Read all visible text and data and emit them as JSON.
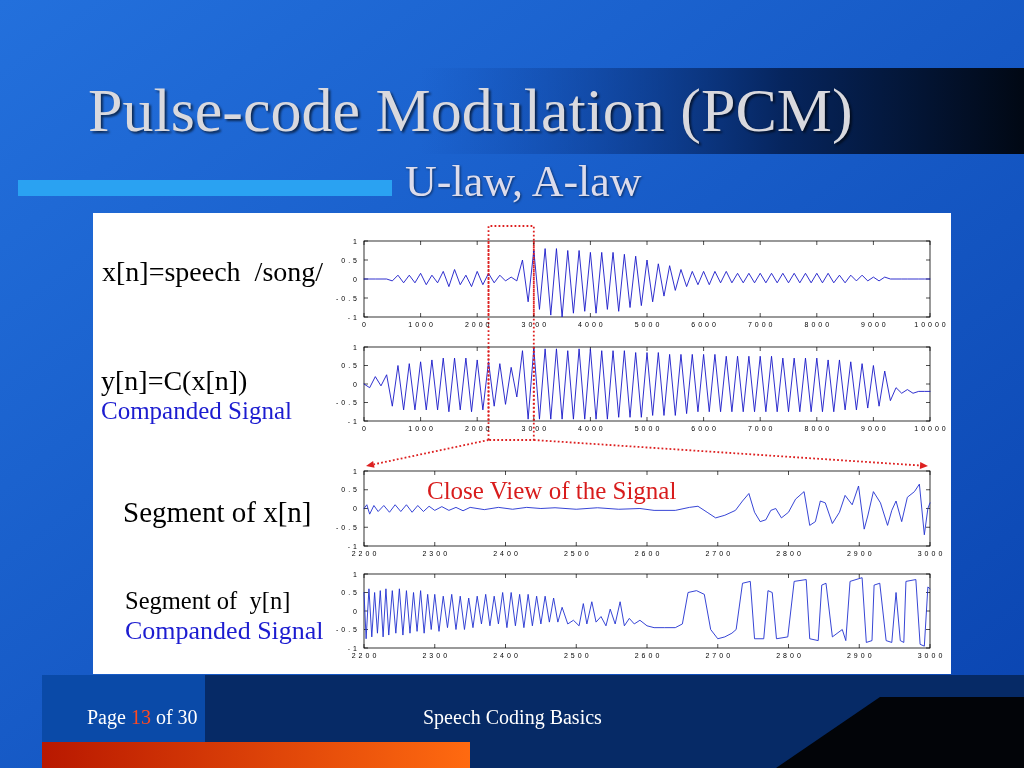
{
  "chart_data": [
    {
      "type": "line",
      "title": "Pulse-code Modulation (PCM)",
      "subtitle": "U-law, A-law",
      "ylabel": "x[n]=speech  /song/",
      "x": [
        0,
        100,
        200,
        300,
        400,
        500,
        600,
        700,
        800,
        900,
        1000,
        1100,
        1200,
        1300,
        1400,
        1500,
        1600,
        1700,
        1800,
        1900,
        2000,
        2100,
        2200,
        2300,
        2400,
        2500,
        2600,
        2700,
        2800,
        2900,
        3000,
        3100,
        3200,
        3300,
        3400,
        3500,
        3600,
        3700,
        3800,
        3900,
        4000,
        4100,
        4200,
        4300,
        4400,
        4500,
        4600,
        4700,
        4800,
        4900,
        5000,
        5100,
        5200,
        5300,
        5400,
        5500,
        5600,
        5700,
        5800,
        5900,
        6000,
        6100,
        6200,
        6300,
        6400,
        6500,
        6600,
        6700,
        6800,
        6900,
        7000,
        7100,
        7200,
        7300,
        7400,
        7500,
        7600,
        7700,
        7800,
        7900,
        8000,
        8100,
        8200,
        8300,
        8400,
        8500,
        8600,
        8700,
        8800,
        8900,
        9000,
        9100,
        9200,
        9300,
        9400,
        9500,
        9600,
        9700,
        9800,
        9900,
        10000
      ],
      "series": [
        {
          "color": "#1818c8",
          "values": [
            0,
            0,
            0,
            0,
            0,
            -0.05,
            0.1,
            -0.1,
            0.1,
            -0.1,
            0.15,
            -0.15,
            0.1,
            -0.1,
            0.2,
            -0.2,
            0.25,
            -0.15,
            0.1,
            -0.2,
            0.2,
            -0.15,
            0.15,
            -0.1,
            0.1,
            -0.05,
            0.05,
            -0.05,
            0.5,
            -0.6,
            0.75,
            -0.8,
            0.8,
            -0.95,
            0.8,
            -1,
            0.75,
            -0.9,
            0.75,
            -0.85,
            0.7,
            -0.9,
            0.7,
            -0.8,
            0.7,
            -0.85,
            0.65,
            -0.75,
            0.6,
            -0.7,
            0.5,
            -0.6,
            0.4,
            -0.45,
            0.35,
            -0.3,
            0.25,
            -0.2,
            0.2,
            -0.15,
            0.2,
            -0.15,
            0.2,
            -0.1,
            0.2,
            -0.1,
            0.15,
            -0.1,
            0.15,
            -0.1,
            0.15,
            -0.1,
            0.15,
            -0.1,
            0.15,
            -0.1,
            0.15,
            -0.1,
            0.15,
            -0.1,
            0.15,
            -0.1,
            0.15,
            -0.1,
            0.1,
            -0.1,
            0.1,
            -0.05,
            0.1,
            -0.05,
            0.05,
            -0.05,
            0.05,
            0,
            0,
            0,
            0,
            0,
            0,
            0,
            0
          ]
        }
      ],
      "xlim": [
        0,
        10000
      ],
      "ylim": [
        -1,
        1
      ],
      "xticks": [
        0,
        1000,
        2000,
        3000,
        4000,
        5000,
        6000,
        7000,
        8000,
        9000,
        10000
      ],
      "yticks": [
        -1,
        -0.5,
        0,
        0.5,
        1
      ],
      "ref_lines": [
        {
          "axis": "x",
          "value": 2200,
          "color": "#dd2020",
          "line_style": "dotted"
        },
        {
          "axis": "x",
          "value": 3000,
          "color": "#dd2020",
          "line_style": "dotted"
        }
      ]
    },
    {
      "type": "line",
      "ylabel": "y[n]=C(x[n])",
      "annotations": [
        "Companded Signal"
      ],
      "x": [
        0,
        100,
        200,
        300,
        400,
        500,
        600,
        700,
        800,
        900,
        1000,
        1100,
        1200,
        1300,
        1400,
        1500,
        1600,
        1700,
        1800,
        1900,
        2000,
        2100,
        2200,
        2300,
        2400,
        2500,
        2600,
        2700,
        2800,
        2900,
        3000,
        3100,
        3200,
        3300,
        3400,
        3500,
        3600,
        3700,
        3800,
        3900,
        4000,
        4100,
        4200,
        4300,
        4400,
        4500,
        4600,
        4700,
        4800,
        4900,
        5000,
        5100,
        5200,
        5300,
        5400,
        5500,
        5600,
        5700,
        5800,
        5900,
        6000,
        6100,
        6200,
        6300,
        6400,
        6500,
        6600,
        6700,
        6800,
        6900,
        7000,
        7100,
        7200,
        7300,
        7400,
        7500,
        7600,
        7700,
        7800,
        7900,
        8000,
        8100,
        8200,
        8300,
        8400,
        8500,
        8600,
        8700,
        8800,
        8900,
        9000,
        9100,
        9200,
        9300,
        9400,
        9500,
        9600,
        9700,
        9800,
        9900,
        10000
      ],
      "series": [
        {
          "color": "#1818c8",
          "values": [
            0,
            -0.1,
            0.2,
            -0.05,
            0.25,
            -0.6,
            0.5,
            -0.7,
            0.55,
            -0.7,
            0.6,
            -0.7,
            0.65,
            -0.7,
            0.7,
            -0.75,
            0.7,
            -0.7,
            0.7,
            -0.75,
            0.65,
            -0.7,
            0.6,
            -0.6,
            0.55,
            -0.55,
            0.45,
            -0.35,
            0.9,
            -0.95,
            0.95,
            -0.95,
            0.95,
            -0.95,
            0.95,
            -0.95,
            0.9,
            -0.95,
            0.95,
            -0.95,
            0.95,
            -0.95,
            0.9,
            -0.95,
            0.9,
            -0.9,
            0.9,
            -0.9,
            0.85,
            -0.9,
            0.85,
            -0.85,
            0.85,
            -0.85,
            0.8,
            -0.85,
            0.8,
            -0.8,
            0.8,
            -0.75,
            0.8,
            -0.75,
            0.8,
            -0.75,
            0.75,
            -0.75,
            0.75,
            -0.75,
            0.75,
            -0.75,
            0.75,
            -0.75,
            0.75,
            -0.75,
            0.7,
            -0.75,
            0.7,
            -0.75,
            0.7,
            -0.75,
            0.7,
            -0.75,
            0.65,
            -0.75,
            0.65,
            -0.7,
            0.6,
            -0.7,
            0.55,
            -0.65,
            0.5,
            -0.6,
            0.35,
            -0.45,
            -0.1,
            -0.25,
            -0.15,
            -0.25,
            -0.2,
            -0.2,
            -0.2
          ]
        }
      ],
      "xlim": [
        0,
        10000
      ],
      "ylim": [
        -1,
        1
      ],
      "xticks": [
        0,
        1000,
        2000,
        3000,
        4000,
        5000,
        6000,
        7000,
        8000,
        9000,
        10000
      ],
      "yticks": [
        -1,
        -0.5,
        0,
        0.5,
        1
      ],
      "ref_lines": [
        {
          "axis": "x",
          "value": 2200,
          "color": "#dd2020",
          "line_style": "dotted"
        },
        {
          "axis": "x",
          "value": 3000,
          "color": "#dd2020",
          "line_style": "dotted"
        }
      ]
    },
    {
      "type": "line",
      "ylabel": "Segment of x[n]",
      "annotations": [
        "Close View of the Signal"
      ],
      "x": [
        2200,
        2204,
        2208,
        2214,
        2220,
        2228,
        2236,
        2244,
        2252,
        2260,
        2268,
        2276,
        2284,
        2292,
        2300,
        2310,
        2320,
        2330,
        2340,
        2350,
        2370,
        2390,
        2410,
        2430,
        2450,
        2470,
        2500,
        2530,
        2560,
        2590,
        2610,
        2640,
        2660,
        2672,
        2685,
        2697,
        2710,
        2725,
        2735,
        2744,
        2752,
        2760,
        2768,
        2775,
        2782,
        2790,
        2800,
        2810,
        2822,
        2830,
        2838,
        2845,
        2852,
        2862,
        2872,
        2880,
        2890,
        2899,
        2907,
        2912,
        2920,
        2930,
        2940,
        2946,
        2952,
        2960,
        2968,
        2978,
        2985,
        2992,
        2997,
        3000
      ],
      "series": [
        {
          "color": "#2030d0",
          "values": [
            0,
            0.1,
            -0.15,
            0.08,
            -0.08,
            0.08,
            -0.1,
            0.1,
            -0.08,
            0.1,
            -0.1,
            0.08,
            -0.08,
            0.06,
            -0.05,
            0.05,
            -0.05,
            0.03,
            -0.06,
            0.03,
            -0.03,
            0.03,
            -0.02,
            0.03,
            0,
            0.02,
            -0.02,
            0.02,
            -0.02,
            0,
            -0.05,
            -0.05,
            0.03,
            0.06,
            -0.1,
            -0.25,
            -0.18,
            -0.05,
            0.2,
            0.4,
            -0.1,
            -0.35,
            -0.3,
            -0.05,
            0,
            -0.25,
            -0.1,
            0.25,
            0.45,
            -0.45,
            -0.35,
            0.2,
            0.15,
            -0.4,
            -0.1,
            0.35,
            0.1,
            0.6,
            -0.55,
            -0.2,
            0.45,
            0.15,
            -0.45,
            -0.05,
            0.2,
            -0.35,
            0.3,
            0.45,
            0.65,
            -0.7,
            0,
            0.15
          ]
        }
      ],
      "xlim": [
        2200,
        3000
      ],
      "ylim": [
        -1,
        1
      ],
      "xticks": [
        2200,
        2300,
        2400,
        2500,
        2600,
        2700,
        2800,
        2900,
        3000
      ],
      "yticks": [
        -1,
        -0.5,
        0,
        0.5,
        1
      ]
    },
    {
      "type": "line",
      "ylabel": "Segment of  y[n]",
      "annotations": [
        "Companded Signal",
        "Page 13 of 30",
        "Speech Coding Basics"
      ],
      "x": [
        2200,
        2203,
        2207,
        2211,
        2215,
        2219,
        2223,
        2227,
        2231,
        2235,
        2240,
        2245,
        2250,
        2255,
        2260,
        2265,
        2270,
        2275,
        2280,
        2285,
        2290,
        2295,
        2300,
        2306,
        2312,
        2318,
        2324,
        2330,
        2336,
        2342,
        2348,
        2354,
        2360,
        2366,
        2372,
        2378,
        2384,
        2390,
        2396,
        2402,
        2408,
        2414,
        2420,
        2426,
        2432,
        2438,
        2444,
        2450,
        2456,
        2462,
        2468,
        2474,
        2480,
        2488,
        2496,
        2504,
        2510,
        2515,
        2522,
        2528,
        2535,
        2542,
        2548,
        2555,
        2562,
        2568,
        2575,
        2582,
        2590,
        2600,
        2610,
        2625,
        2640,
        2650,
        2658,
        2670,
        2681,
        2690,
        2700,
        2710,
        2720,
        2726,
        2735,
        2746,
        2752,
        2765,
        2771,
        2777,
        2783,
        2799,
        2808,
        2825,
        2830,
        2842,
        2847,
        2853,
        2862,
        2876,
        2881,
        2887,
        2904,
        2910,
        2918,
        2921,
        2929,
        2938,
        2946,
        2952,
        2958,
        2963,
        2966,
        2980,
        2986,
        2992,
        2997,
        3000
      ],
      "series": [
        {
          "color": "#2030d0",
          "values": [
            0.5,
            -0.75,
            0.6,
            -0.7,
            0.5,
            -0.6,
            0.55,
            -0.7,
            0.6,
            -0.65,
            0.55,
            -0.6,
            0.6,
            -0.65,
            0.55,
            -0.6,
            0.5,
            -0.55,
            0.55,
            -0.6,
            0.45,
            -0.5,
            0.45,
            -0.55,
            0.4,
            -0.45,
            0.45,
            -0.5,
            0.4,
            -0.5,
            0.35,
            -0.45,
            0.4,
            -0.35,
            0.45,
            -0.4,
            0.4,
            -0.35,
            0.5,
            -0.45,
            0.5,
            -0.4,
            0.45,
            -0.45,
            0.45,
            -0.4,
            0.4,
            -0.35,
            0.4,
            -0.3,
            0.35,
            -0.3,
            0.1,
            -0.35,
            -0.25,
            -0.4,
            0.2,
            -0.35,
            0.25,
            -0.3,
            -0.15,
            -0.4,
            0.05,
            -0.35,
            0.25,
            -0.4,
            -0.2,
            -0.35,
            -0.25,
            -0.4,
            -0.45,
            -0.45,
            -0.45,
            -0.35,
            0.5,
            0.55,
            0.45,
            -0.5,
            -0.75,
            -0.7,
            -0.6,
            -0.5,
            0.75,
            0.8,
            -0.75,
            -0.75,
            0.55,
            0.5,
            -0.75,
            -0.7,
            0.8,
            0.85,
            -0.75,
            -0.8,
            0.7,
            0.75,
            -0.7,
            -0.5,
            -0.8,
            0.8,
            0.9,
            -0.85,
            -0.8,
            0.7,
            0.75,
            -0.8,
            -0.85,
            0.5,
            -0.8,
            -0.85,
            0.8,
            0.85,
            -0.9,
            -0.95,
            0.65,
            0.6
          ]
        }
      ],
      "xlim": [
        2200,
        3000
      ],
      "ylim": [
        -1,
        1
      ],
      "xticks": [
        2200,
        2300,
        2400,
        2500,
        2600,
        2700,
        2800,
        2900,
        3000
      ],
      "yticks": [
        -1,
        -0.5,
        0,
        0.5,
        1
      ]
    }
  ]
}
